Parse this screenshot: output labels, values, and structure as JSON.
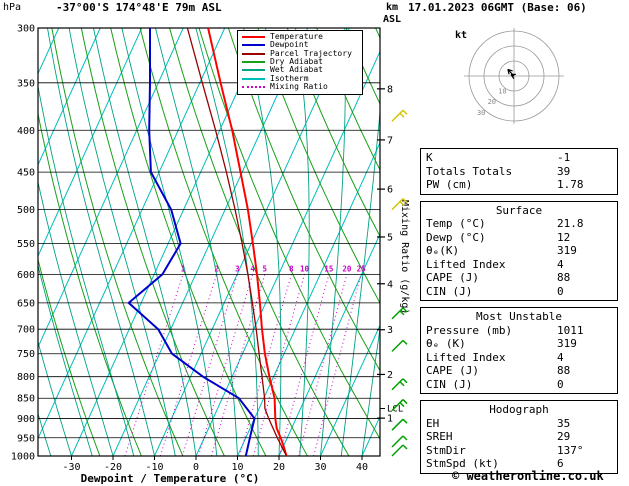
{
  "footer": {
    "copyright": "© weatheronline.co.uk"
  },
  "legend": {
    "items": [
      {
        "label": "Temperature",
        "color": "#ff0000",
        "style": "solid"
      },
      {
        "label": "Dewpoint",
        "color": "#0000cc",
        "style": "solid"
      },
      {
        "label": "Parcel Trajectory",
        "color": "#990000",
        "style": "solid"
      },
      {
        "label": "Dry Adiabat",
        "color": "#18a018",
        "style": "solid"
      },
      {
        "label": "Wet Adiabat",
        "color": "#00a383",
        "style": "solid"
      },
      {
        "label": "Isotherm",
        "color": "#00bdbd",
        "style": "solid"
      },
      {
        "label": "Mixing Ratio",
        "color": "#cc00cc",
        "style": "dotted"
      }
    ]
  },
  "hodograph": {
    "unit_label": "kt",
    "rings_kt": [
      10,
      20,
      30
    ],
    "wind_vectors_kt": [
      {
        "u": -4.1,
        "v": 4.4
      },
      {
        "u": -2.0,
        "v": 1.0
      }
    ]
  },
  "panel": {
    "groups": [
      {
        "title": null,
        "rows": [
          {
            "label": "K",
            "value": "-1"
          },
          {
            "label": "Totals Totals",
            "value": "39"
          },
          {
            "label": "PW (cm)",
            "value": "1.78"
          }
        ]
      },
      {
        "title": "Surface",
        "rows": [
          {
            "label": "Temp (°C)",
            "value": "21.8"
          },
          {
            "label": "Dewp (°C)",
            "value": "12"
          },
          {
            "label": "θₑ(K)",
            "value": "319"
          },
          {
            "label": "Lifted Index",
            "value": "4"
          },
          {
            "label": "CAPE (J)",
            "value": "88"
          },
          {
            "label": "CIN (J)",
            "value": "0"
          }
        ]
      },
      {
        "title": "Most Unstable",
        "rows": [
          {
            "label": "Pressure (mb)",
            "value": "1011"
          },
          {
            "label": "θₑ (K)",
            "value": "319"
          },
          {
            "label": "Lifted Index",
            "value": "4"
          },
          {
            "label": "CAPE (J)",
            "value": "88"
          },
          {
            "label": "CIN (J)",
            "value": "0"
          }
        ]
      },
      {
        "title": "Hodograph",
        "rows": [
          {
            "label": "EH",
            "value": "35"
          },
          {
            "label": "SREH",
            "value": "29"
          },
          {
            "label": "StmDir",
            "value": "137°"
          },
          {
            "label": "StmSpd (kt)",
            "value": "6"
          }
        ]
      }
    ]
  },
  "chart_data": {
    "type": "skewt_log_p",
    "title": "-37°00'S 174°48'E 79m ASL",
    "datetime": "17.01.2023 06GMT (Base: 06)",
    "pressure_axis": {
      "label": "hPa",
      "scale": "log",
      "min": 300,
      "max": 1000,
      "ticks": [
        300,
        350,
        400,
        450,
        500,
        550,
        600,
        650,
        700,
        750,
        800,
        850,
        900,
        950,
        1000
      ]
    },
    "temperature_axis": {
      "label": "Dewpoint / Temperature (°C)",
      "min": -40,
      "max": 45,
      "ticks": [
        -30,
        -20,
        -10,
        0,
        10,
        20,
        30,
        40
      ]
    },
    "altitude_axis": {
      "unit_top": "km",
      "unit_bottom": "ASL",
      "ticks": [
        {
          "km": 1,
          "hpa": 899
        },
        {
          "km": 2,
          "hpa": 795
        },
        {
          "km": 3,
          "hpa": 701
        },
        {
          "km": 4,
          "hpa": 616
        },
        {
          "km": 5,
          "hpa": 540
        },
        {
          "km": 6,
          "hpa": 472
        },
        {
          "km": 7,
          "hpa": 411
        },
        {
          "km": 8,
          "hpa": 356
        }
      ],
      "lcl_label": "LCL",
      "lcl_pressure": 875
    },
    "mixing_ratio_axis": {
      "label": "Mixing Ratio (g/kg)",
      "lines": [
        1,
        2,
        3,
        4,
        5,
        8,
        10,
        15,
        20,
        25
      ]
    },
    "background_lines": {
      "isotherm": {
        "color": "#00bdbd",
        "step_c": 10
      },
      "dry_adiabat": {
        "color": "#18a018",
        "step_k": 10
      },
      "wet_adiabat": {
        "color": "#00a383",
        "step_c": 5
      },
      "mixing_ratio": {
        "color": "#cc00cc",
        "style": "dotted"
      },
      "pressure_grid_color": "#000000"
    },
    "series": [
      {
        "name": "Temperature",
        "color": "#ff0000",
        "points": [
          [
            1000,
            21.8
          ],
          [
            975,
            20.2
          ],
          [
            950,
            18.4
          ],
          [
            925,
            16.4
          ],
          [
            900,
            15.0
          ],
          [
            850,
            12.6
          ],
          [
            800,
            9.0
          ],
          [
            750,
            5.4
          ],
          [
            700,
            2.0
          ],
          [
            650,
            -1.4
          ],
          [
            600,
            -5.2
          ],
          [
            550,
            -9.6
          ],
          [
            500,
            -14.5
          ],
          [
            450,
            -20.4
          ],
          [
            400,
            -27.0
          ],
          [
            350,
            -35.0
          ],
          [
            300,
            -44.0
          ]
        ]
      },
      {
        "name": "Dewpoint",
        "color": "#0000cc",
        "points": [
          [
            1000,
            12.0
          ],
          [
            950,
            11.0
          ],
          [
            900,
            10.0
          ],
          [
            850,
            4.0
          ],
          [
            800,
            -7.0
          ],
          [
            750,
            -17.0
          ],
          [
            700,
            -23.0
          ],
          [
            650,
            -33.0
          ],
          [
            600,
            -28.0
          ],
          [
            550,
            -27.0
          ],
          [
            500,
            -33.0
          ],
          [
            450,
            -42.0
          ],
          [
            400,
            -47.0
          ],
          [
            350,
            -52.0
          ],
          [
            300,
            -58.0
          ]
        ]
      },
      {
        "name": "Parcel Trajectory",
        "color": "#990000",
        "points": [
          [
            1000,
            21.8
          ],
          [
            950,
            17.6
          ],
          [
            900,
            13.4
          ],
          [
            875,
            11.4
          ],
          [
            850,
            10.2
          ],
          [
            800,
            7.2
          ],
          [
            750,
            4.0
          ],
          [
            700,
            0.6
          ],
          [
            650,
            -3.2
          ],
          [
            600,
            -7.4
          ],
          [
            550,
            -12.2
          ],
          [
            500,
            -17.6
          ],
          [
            450,
            -23.8
          ],
          [
            400,
            -31.0
          ],
          [
            350,
            -39.4
          ],
          [
            300,
            -49.0
          ]
        ]
      }
    ],
    "wind_barbs": [
      {
        "pressure": 390,
        "color": "#d4c400",
        "speed_kt": 15
      },
      {
        "pressure": 500,
        "color": "#d4c400",
        "speed_kt": 10
      },
      {
        "pressure": 680,
        "color": "#00a000",
        "speed_kt": 10
      },
      {
        "pressure": 745,
        "color": "#00a000",
        "speed_kt": 5
      },
      {
        "pressure": 830,
        "color": "#00a000",
        "speed_kt": 10
      },
      {
        "pressure": 880,
        "color": "#00a000",
        "speed_kt": 10
      },
      {
        "pressure": 930,
        "color": "#00a000",
        "speed_kt": 5
      },
      {
        "pressure": 975,
        "color": "#00a000",
        "speed_kt": 5
      },
      {
        "pressure": 1000,
        "color": "#00a000",
        "speed_kt": 5
      }
    ]
  }
}
